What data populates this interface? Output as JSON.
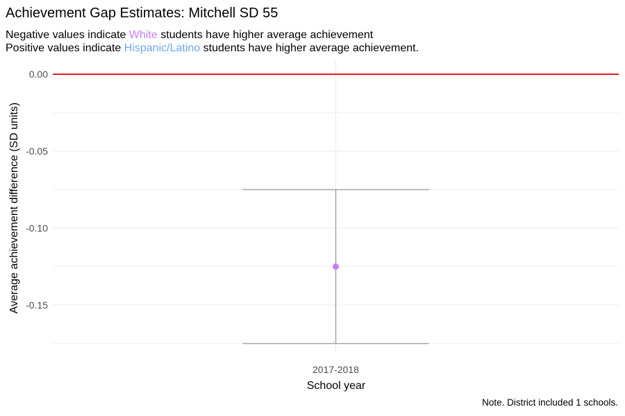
{
  "title": "Achievement Gap Estimates: Mitchell SD 55",
  "subtitle": {
    "line1_prefix": "Negative values indicate ",
    "line1_group": "White",
    "line1_suffix": " students have higher average achievement",
    "line2_prefix": "Positive values indicate ",
    "line2_group": "Hispanic/Latino",
    "line2_suffix": " students have higher average achievement."
  },
  "caption": "Note. District included 1 schools.",
  "colors": {
    "white_group": "#c77cff",
    "hispanic_group": "#6ea6ea",
    "reference_line": "#e31a1c",
    "error_bar": "#a6a6a6",
    "grid": "#ebebeb"
  },
  "chart_data": {
    "type": "scatter",
    "title": "Achievement Gap Estimates: Mitchell SD 55",
    "xlabel": "School year",
    "ylabel": "Average achievement difference (SD units)",
    "categories": [
      "2017-2018"
    ],
    "series": [
      {
        "values": [
          -0.125
        ],
        "lower": [
          -0.175
        ],
        "upper": [
          -0.075
        ]
      }
    ],
    "reference_line_y": 0.0,
    "ylim": [
      -0.178,
      0.008
    ],
    "yticks": [
      0.0,
      -0.05,
      -0.1,
      -0.15
    ],
    "ytick_labels": [
      "0.00",
      "-0.05",
      "-0.10",
      "-0.15"
    ],
    "grid": true
  }
}
